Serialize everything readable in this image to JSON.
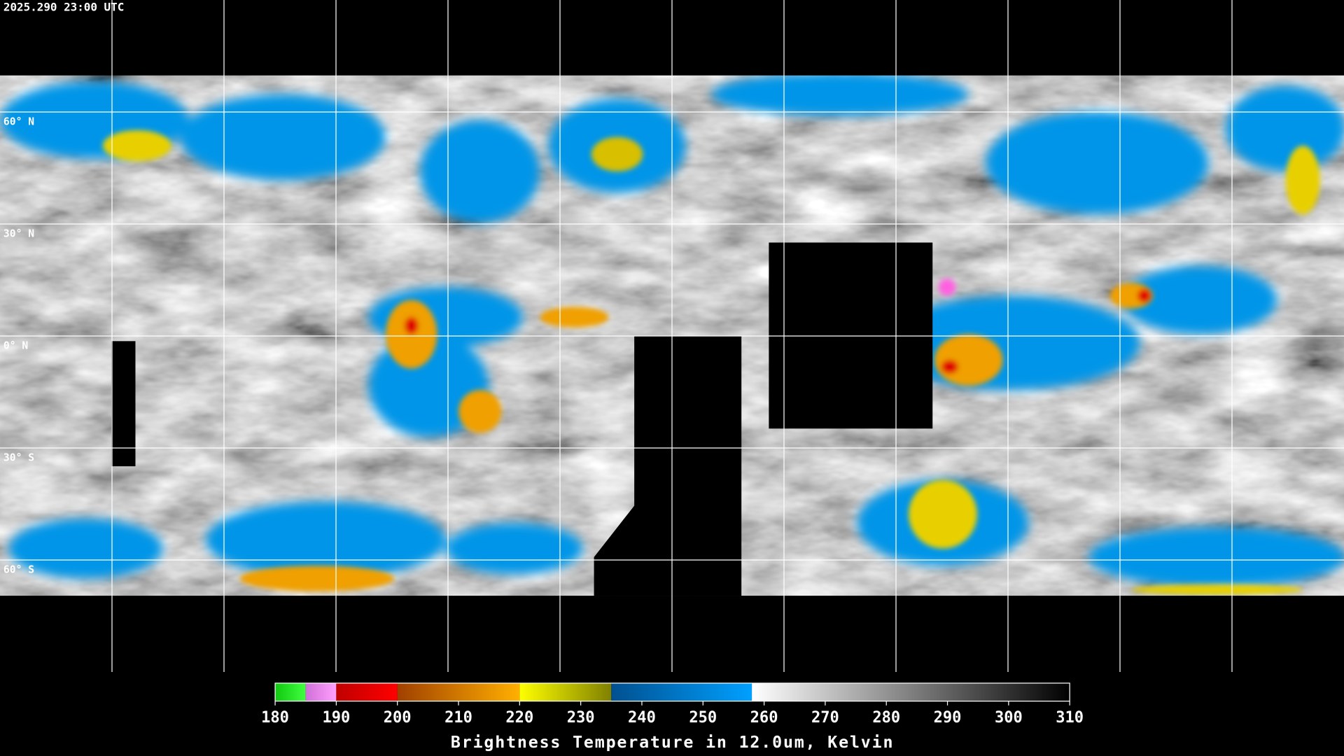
{
  "header": {
    "timestamp": "2025.290 23:00 UTC"
  },
  "map": {
    "lat_lines": [
      {
        "value": 60,
        "label": "60° N"
      },
      {
        "value": 30,
        "label": "30° N"
      },
      {
        "value": 0,
        "label": "0° N"
      },
      {
        "value": -30,
        "label": "30° S"
      },
      {
        "value": -60,
        "label": "60° S"
      }
    ],
    "lon_lines": [
      -150,
      -120,
      -90,
      -60,
      -30,
      0,
      30,
      60,
      90,
      120,
      150
    ]
  },
  "colorbar": {
    "title": "Brightness Temperature in 12.0um, Kelvin",
    "lim": [
      180,
      310
    ],
    "ticks": [
      180,
      190,
      200,
      210,
      220,
      230,
      240,
      250,
      260,
      270,
      280,
      290,
      300,
      310
    ],
    "segments": [
      {
        "from": 180,
        "to": 185,
        "colors": [
          "#10c810",
          "#40ff40"
        ]
      },
      {
        "from": 185,
        "to": 190,
        "colors": [
          "#d070d8",
          "#ffa0ff"
        ]
      },
      {
        "from": 190,
        "to": 200,
        "colors": [
          "#c00000",
          "#ff0000"
        ]
      },
      {
        "from": 200,
        "to": 220,
        "colors": [
          "#a04000",
          "#ffb000"
        ]
      },
      {
        "from": 220,
        "to": 235,
        "colors": [
          "#ffff00",
          "#808000"
        ]
      },
      {
        "from": 235,
        "to": 258,
        "colors": [
          "#005090",
          "#00a0ff"
        ]
      },
      {
        "from": 258,
        "to": 310,
        "colors": [
          "#ffffff",
          "#000000"
        ]
      }
    ]
  }
}
